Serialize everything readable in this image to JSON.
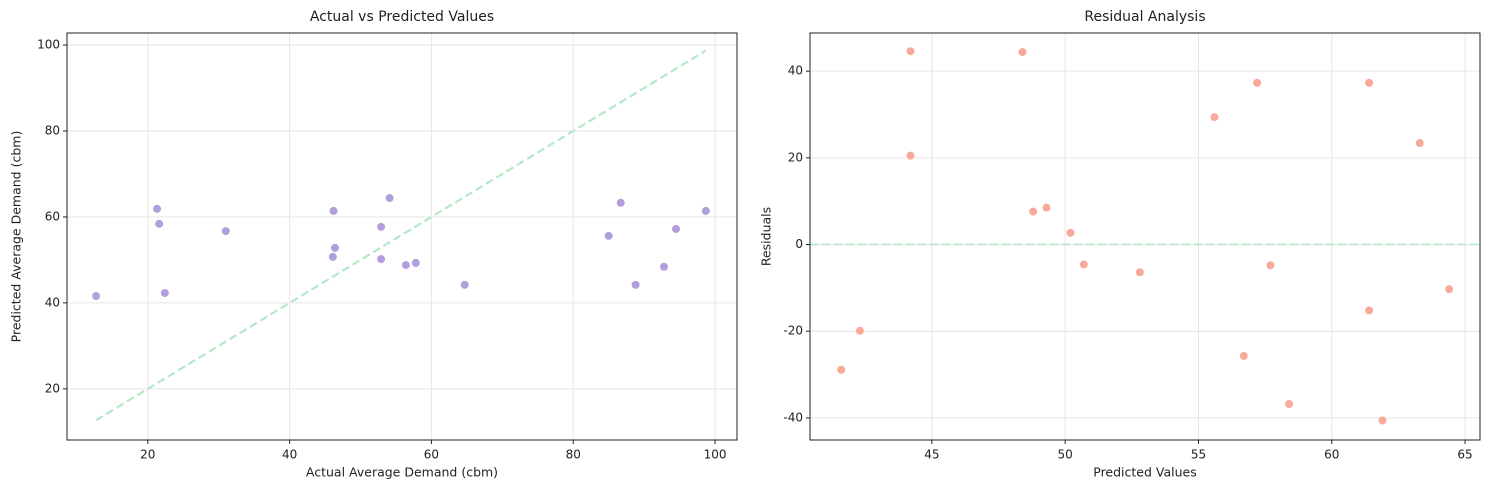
{
  "chart_data": [
    {
      "type": "scatter",
      "title": "Actual vs Predicted Values",
      "x_label": "Actual Average Demand (cbm)",
      "y_label": "Predicted Average Demand (cbm)",
      "x": [
        12.7,
        21.3,
        21.6,
        22.4,
        31.0,
        46.2,
        46.4,
        46.1,
        52.9,
        52.9,
        54.1,
        56.4,
        57.8,
        64.7,
        85.0,
        86.7,
        88.8,
        92.8,
        94.5,
        98.7
      ],
      "values": [
        41.6,
        61.9,
        58.4,
        42.3,
        56.7,
        61.4,
        52.8,
        50.7,
        57.7,
        50.2,
        64.4,
        48.8,
        49.3,
        44.2,
        55.6,
        63.3,
        44.2,
        48.4,
        57.2,
        61.4
      ],
      "color": "#b19fdc",
      "reference_line": {
        "x": [
          12.7,
          98.7
        ],
        "y": [
          12.7,
          98.7
        ],
        "color": "#b4e8c6",
        "dashed": true
      },
      "xlim": [
        8.6,
        103.1
      ],
      "ylim": [
        8.1,
        102.8
      ],
      "xticks": [
        20,
        40,
        60,
        80,
        100
      ],
      "yticks": [
        20,
        40,
        60,
        80,
        100
      ],
      "grid": true
    },
    {
      "type": "scatter",
      "title": "Residual Analysis",
      "x_label": "Predicted Values",
      "y_label": "Residuals",
      "x": [
        41.6,
        61.9,
        58.4,
        42.3,
        56.7,
        61.4,
        52.8,
        50.7,
        57.7,
        50.2,
        64.4,
        48.8,
        49.3,
        44.2,
        55.6,
        63.3,
        44.2,
        48.4,
        57.2,
        61.4
      ],
      "values": [
        -28.9,
        -40.6,
        -36.8,
        -19.9,
        -25.7,
        -15.2,
        -6.4,
        -4.6,
        -4.8,
        2.7,
        -10.3,
        7.6,
        8.5,
        20.5,
        29.4,
        23.4,
        44.6,
        44.4,
        37.3,
        37.3
      ],
      "color": "#f9a99a",
      "reference_hline": {
        "y": 0,
        "color": "#b4e8c6",
        "dashed": true
      },
      "xlim": [
        40.43,
        65.56
      ],
      "ylim": [
        -45.1,
        48.8
      ],
      "xticks": [
        45,
        50,
        55,
        60,
        65
      ],
      "yticks": [
        -40,
        -20,
        0,
        20,
        40
      ],
      "grid": true
    }
  ]
}
